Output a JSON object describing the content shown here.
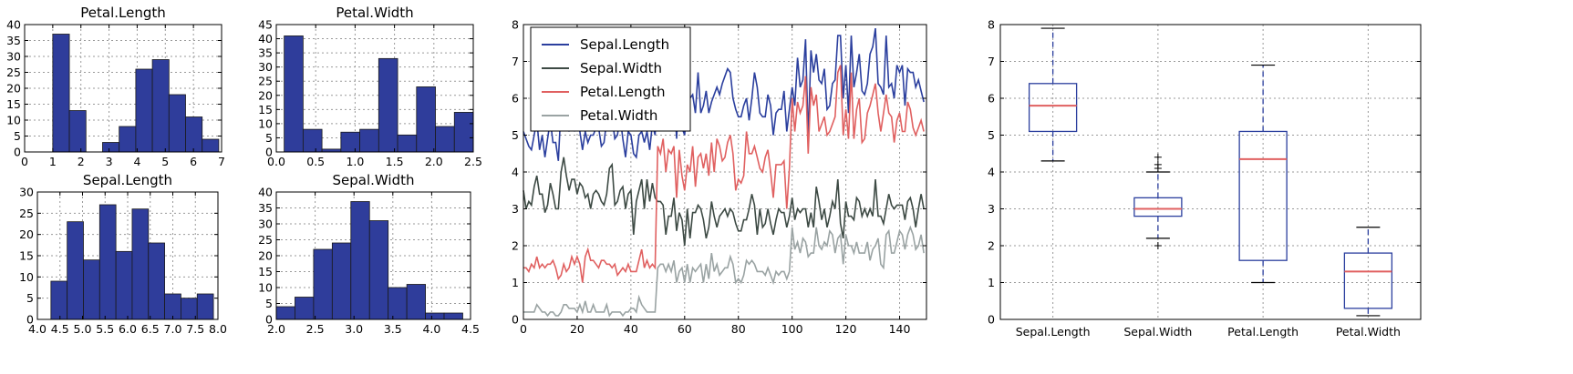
{
  "chart_data": [
    {
      "type": "bar",
      "title": "Petal.Length",
      "bins": [
        [
          1.0,
          1.59,
          37
        ],
        [
          1.59,
          2.18,
          13
        ],
        [
          2.18,
          2.77,
          0
        ],
        [
          2.77,
          3.36,
          3
        ],
        [
          3.36,
          3.95,
          8
        ],
        [
          3.95,
          4.54,
          26
        ],
        [
          4.54,
          5.13,
          29
        ],
        [
          5.13,
          5.72,
          18
        ],
        [
          5.72,
          6.31,
          11
        ],
        [
          6.31,
          6.9,
          4
        ]
      ],
      "xlim": [
        0,
        7
      ],
      "ylim": [
        0,
        40
      ],
      "xticks": [
        "0",
        "1",
        "2",
        "3",
        "4",
        "5",
        "6",
        "7"
      ],
      "yticks": [
        "0",
        "5",
        "10",
        "15",
        "20",
        "25",
        "30",
        "35",
        "40"
      ],
      "grid": true
    },
    {
      "type": "bar",
      "title": "Petal.Width",
      "bins": [
        [
          0.1,
          0.34,
          41
        ],
        [
          0.34,
          0.58,
          8
        ],
        [
          0.58,
          0.82,
          1
        ],
        [
          0.82,
          1.06,
          7
        ],
        [
          1.06,
          1.3,
          8
        ],
        [
          1.3,
          1.54,
          33
        ],
        [
          1.54,
          1.78,
          6
        ],
        [
          1.78,
          2.02,
          23
        ],
        [
          2.02,
          2.26,
          9
        ],
        [
          2.26,
          2.5,
          14
        ]
      ],
      "xlim": [
        0,
        2.5
      ],
      "ylim": [
        0,
        45
      ],
      "xticks": [
        "0.0",
        "0.5",
        "1.0",
        "1.5",
        "2.0",
        "2.5"
      ],
      "yticks": [
        "0",
        "5",
        "10",
        "15",
        "20",
        "25",
        "30",
        "35",
        "40",
        "45"
      ],
      "grid": true
    },
    {
      "type": "bar",
      "title": "Sepal.Length",
      "bins": [
        [
          4.3,
          4.66,
          9
        ],
        [
          4.66,
          5.02,
          23
        ],
        [
          5.02,
          5.38,
          14
        ],
        [
          5.38,
          5.74,
          27
        ],
        [
          5.74,
          6.1,
          16
        ],
        [
          6.1,
          6.46,
          26
        ],
        [
          6.46,
          6.82,
          18
        ],
        [
          6.82,
          7.18,
          6
        ],
        [
          7.18,
          7.54,
          5
        ],
        [
          7.54,
          7.9,
          6
        ]
      ],
      "xlim": [
        4.0,
        8.0
      ],
      "ylim": [
        0,
        30
      ],
      "xticks": [
        "4.0",
        "4.5",
        "5.0",
        "5.5",
        "6.0",
        "6.5",
        "7.0",
        "7.5",
        "8.0"
      ],
      "yticks": [
        "0",
        "5",
        "10",
        "15",
        "20",
        "25",
        "30"
      ],
      "grid": true
    },
    {
      "type": "bar",
      "title": "Sepal.Width",
      "bins": [
        [
          2.0,
          2.24,
          4
        ],
        [
          2.24,
          2.48,
          7
        ],
        [
          2.48,
          2.72,
          22
        ],
        [
          2.72,
          2.96,
          24
        ],
        [
          2.96,
          3.2,
          37
        ],
        [
          3.2,
          3.44,
          31
        ],
        [
          3.44,
          3.68,
          10
        ],
        [
          3.68,
          3.92,
          11
        ],
        [
          3.92,
          4.16,
          2
        ],
        [
          4.16,
          4.4,
          2
        ]
      ],
      "xlim": [
        2.0,
        4.5
      ],
      "ylim": [
        0,
        40
      ],
      "xticks": [
        "2.0",
        "2.5",
        "3.0",
        "3.5",
        "4.0",
        "4.5"
      ],
      "yticks": [
        "0",
        "5",
        "10",
        "15",
        "20",
        "25",
        "30",
        "35",
        "40"
      ],
      "grid": true
    },
    {
      "type": "line",
      "xlim": [
        0,
        150
      ],
      "ylim": [
        0,
        8
      ],
      "xticks": [
        "0",
        "20",
        "40",
        "60",
        "80",
        "100",
        "120",
        "140"
      ],
      "yticks": [
        "0",
        "1",
        "2",
        "3",
        "4",
        "5",
        "6",
        "7",
        "8"
      ],
      "grid": true,
      "legend_position": "top-left",
      "x": "0..149",
      "series": [
        {
          "name": "Sepal.Length",
          "color": "#2b3f9e",
          "values": [
            5.1,
            4.9,
            4.7,
            4.6,
            5.0,
            5.4,
            4.6,
            5.0,
            4.4,
            4.9,
            5.4,
            4.8,
            4.8,
            4.3,
            5.8,
            5.7,
            5.4,
            5.1,
            5.7,
            5.1,
            5.4,
            5.1,
            4.6,
            5.1,
            4.8,
            5.0,
            5.0,
            5.2,
            5.2,
            4.7,
            4.8,
            5.4,
            5.2,
            5.5,
            4.9,
            5.0,
            5.5,
            4.9,
            4.4,
            5.1,
            5.0,
            4.5,
            4.4,
            5.0,
            5.1,
            4.8,
            5.1,
            4.6,
            5.3,
            5.0,
            7.0,
            6.4,
            6.9,
            5.5,
            6.5,
            5.7,
            6.3,
            4.9,
            6.6,
            5.2,
            5.0,
            5.9,
            6.0,
            6.1,
            5.6,
            6.7,
            5.6,
            5.8,
            6.2,
            5.6,
            5.9,
            6.1,
            6.3,
            6.1,
            6.4,
            6.6,
            6.8,
            6.7,
            6.0,
            5.7,
            5.5,
            5.5,
            5.8,
            6.0,
            5.4,
            6.0,
            6.7,
            6.3,
            5.6,
            5.5,
            5.5,
            6.1,
            5.8,
            5.0,
            5.6,
            5.7,
            5.7,
            6.2,
            5.1,
            5.7,
            6.3,
            5.8,
            7.1,
            6.3,
            6.5,
            7.6,
            4.9,
            7.3,
            6.7,
            7.2,
            6.5,
            6.4,
            6.8,
            5.7,
            5.8,
            6.4,
            6.5,
            7.7,
            7.7,
            6.0,
            6.9,
            5.6,
            7.7,
            6.3,
            6.7,
            7.2,
            6.2,
            6.1,
            6.4,
            7.2,
            7.4,
            7.9,
            6.4,
            6.3,
            6.1,
            7.7,
            6.3,
            6.4,
            6.0,
            6.9,
            6.7,
            6.9,
            5.8,
            6.8,
            6.7,
            6.7,
            6.3,
            6.5,
            6.2,
            5.9
          ]
        },
        {
          "name": "Sepal.Width",
          "color": "#3d4a44",
          "values": [
            3.5,
            3.0,
            3.2,
            3.1,
            3.6,
            3.9,
            3.4,
            3.4,
            2.9,
            3.1,
            3.7,
            3.4,
            3.0,
            3.0,
            4.0,
            4.4,
            3.9,
            3.5,
            3.8,
            3.8,
            3.4,
            3.7,
            3.6,
            3.3,
            3.4,
            3.0,
            3.4,
            3.5,
            3.4,
            3.2,
            3.1,
            3.4,
            4.1,
            4.2,
            3.1,
            3.2,
            3.5,
            3.6,
            3.0,
            3.4,
            3.5,
            2.3,
            3.2,
            3.5,
            3.8,
            3.0,
            3.8,
            3.2,
            3.7,
            3.3,
            3.2,
            3.2,
            3.1,
            2.3,
            2.8,
            2.8,
            3.3,
            2.4,
            2.9,
            2.7,
            2.0,
            3.0,
            2.2,
            2.9,
            2.9,
            3.1,
            3.0,
            2.7,
            2.2,
            2.5,
            3.2,
            2.8,
            2.5,
            2.8,
            2.9,
            3.0,
            2.8,
            3.0,
            2.9,
            2.6,
            2.4,
            2.4,
            2.7,
            2.7,
            3.0,
            3.4,
            3.1,
            2.3,
            3.0,
            2.5,
            2.6,
            3.0,
            2.6,
            2.3,
            2.7,
            3.0,
            2.9,
            2.9,
            2.5,
            2.8,
            3.3,
            2.7,
            3.0,
            2.9,
            3.0,
            3.0,
            2.5,
            2.9,
            2.5,
            3.6,
            3.2,
            2.7,
            3.0,
            2.5,
            2.8,
            3.2,
            3.0,
            3.8,
            2.6,
            2.2,
            3.2,
            2.8,
            2.8,
            2.7,
            3.3,
            3.2,
            2.8,
            3.0,
            2.8,
            3.0,
            2.8,
            3.8,
            2.8,
            2.8,
            2.6,
            3.0,
            3.4,
            3.1,
            3.0,
            3.1,
            3.1,
            3.1,
            2.7,
            3.2,
            3.3,
            3.0,
            2.5,
            3.0,
            3.4,
            3.0
          ]
        },
        {
          "name": "Petal.Length",
          "color": "#e06060",
          "values": [
            1.4,
            1.4,
            1.3,
            1.5,
            1.4,
            1.7,
            1.4,
            1.5,
            1.4,
            1.5,
            1.5,
            1.6,
            1.4,
            1.1,
            1.2,
            1.5,
            1.3,
            1.4,
            1.7,
            1.5,
            1.7,
            1.5,
            1.0,
            1.7,
            1.9,
            1.6,
            1.6,
            1.5,
            1.4,
            1.6,
            1.6,
            1.5,
            1.5,
            1.4,
            1.5,
            1.2,
            1.3,
            1.4,
            1.3,
            1.5,
            1.3,
            1.3,
            1.3,
            1.6,
            1.9,
            1.4,
            1.6,
            1.4,
            1.5,
            1.4,
            4.7,
            4.5,
            4.9,
            4.0,
            4.6,
            4.5,
            4.7,
            3.3,
            4.6,
            3.9,
            3.5,
            4.2,
            4.0,
            4.7,
            3.6,
            4.4,
            4.5,
            4.1,
            4.5,
            3.9,
            4.8,
            4.0,
            4.9,
            4.7,
            4.3,
            4.4,
            4.8,
            5.0,
            4.5,
            3.5,
            3.8,
            3.7,
            3.9,
            5.1,
            4.5,
            4.5,
            4.7,
            4.4,
            4.1,
            4.0,
            4.4,
            4.6,
            4.0,
            3.3,
            4.2,
            4.2,
            4.2,
            4.3,
            3.0,
            4.1,
            6.0,
            5.1,
            5.9,
            5.6,
            5.8,
            6.6,
            4.5,
            6.3,
            5.8,
            6.1,
            5.1,
            5.3,
            5.5,
            5.0,
            5.1,
            5.3,
            5.5,
            6.7,
            6.9,
            5.0,
            5.7,
            4.9,
            6.7,
            4.9,
            5.7,
            6.0,
            4.8,
            4.9,
            5.6,
            5.8,
            6.1,
            6.4,
            5.6,
            5.1,
            5.6,
            6.1,
            5.6,
            5.5,
            4.8,
            5.4,
            5.6,
            5.1,
            5.1,
            5.9,
            5.7,
            5.2,
            5.0,
            5.2,
            5.4,
            5.1
          ]
        },
        {
          "name": "Petal.Width",
          "color": "#9aa3a3",
          "values": [
            0.2,
            0.2,
            0.2,
            0.2,
            0.2,
            0.4,
            0.3,
            0.2,
            0.2,
            0.1,
            0.2,
            0.2,
            0.1,
            0.1,
            0.2,
            0.4,
            0.4,
            0.3,
            0.3,
            0.3,
            0.2,
            0.4,
            0.2,
            0.5,
            0.2,
            0.2,
            0.4,
            0.2,
            0.2,
            0.2,
            0.2,
            0.4,
            0.1,
            0.2,
            0.2,
            0.2,
            0.2,
            0.1,
            0.2,
            0.2,
            0.3,
            0.3,
            0.2,
            0.6,
            0.4,
            0.3,
            0.2,
            0.2,
            0.2,
            0.2,
            1.4,
            1.5,
            1.5,
            1.3,
            1.5,
            1.3,
            1.6,
            1.0,
            1.3,
            1.4,
            1.0,
            1.5,
            1.0,
            1.4,
            1.3,
            1.4,
            1.5,
            1.0,
            1.5,
            1.1,
            1.8,
            1.3,
            1.5,
            1.2,
            1.3,
            1.4,
            1.4,
            1.7,
            1.5,
            1.0,
            1.1,
            1.0,
            1.2,
            1.6,
            1.5,
            1.6,
            1.5,
            1.3,
            1.3,
            1.3,
            1.2,
            1.4,
            1.2,
            1.0,
            1.3,
            1.2,
            1.3,
            1.3,
            1.1,
            1.3,
            2.5,
            1.9,
            2.1,
            1.8,
            2.2,
            2.1,
            1.7,
            1.8,
            1.8,
            2.5,
            2.0,
            1.9,
            2.1,
            2.0,
            2.4,
            2.3,
            1.8,
            2.2,
            2.3,
            1.5,
            2.3,
            2.0,
            2.0,
            1.8,
            2.1,
            1.8,
            1.8,
            1.8,
            2.1,
            1.6,
            1.9,
            2.0,
            2.2,
            1.5,
            1.4,
            2.3,
            2.4,
            1.8,
            1.8,
            2.1,
            2.4,
            2.3,
            1.9,
            2.3,
            2.5,
            2.3,
            1.9,
            2.0,
            2.3,
            1.8
          ]
        }
      ]
    },
    {
      "type": "box",
      "ylim": [
        0,
        8
      ],
      "yticks": [
        "0",
        "1",
        "2",
        "3",
        "4",
        "5",
        "6",
        "7",
        "8"
      ],
      "grid": true,
      "box_color": "#2b3f9e",
      "median_color": "#e06060",
      "categories": [
        "Sepal.Length",
        "Sepal.Width",
        "Petal.Length",
        "Petal.Width"
      ],
      "boxes": [
        {
          "whislo": 4.3,
          "q1": 5.1,
          "med": 5.8,
          "q3": 6.4,
          "whishi": 7.9,
          "fliers": []
        },
        {
          "whislo": 2.2,
          "q1": 2.8,
          "med": 3.0,
          "q3": 3.3,
          "whishi": 4.0,
          "fliers": [
            2.0,
            4.1,
            4.2,
            4.4
          ]
        },
        {
          "whislo": 1.0,
          "q1": 1.6,
          "med": 4.35,
          "q3": 5.1,
          "whishi": 6.9,
          "fliers": []
        },
        {
          "whislo": 0.1,
          "q1": 0.3,
          "med": 1.3,
          "q3": 1.8,
          "whishi": 2.5,
          "fliers": []
        }
      ]
    }
  ]
}
